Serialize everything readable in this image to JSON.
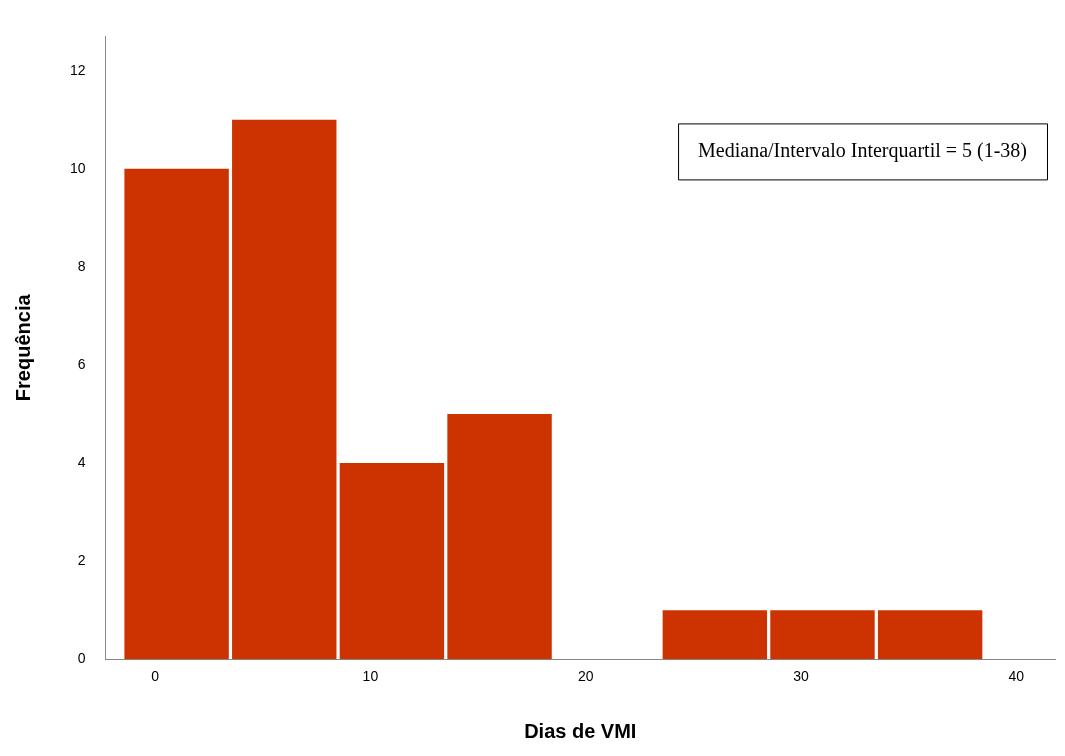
{
  "chart_data": {
    "type": "histogram",
    "xlabel": "Dias de VMI",
    "ylabel": "Frequência",
    "bins": [
      -1.5,
      3.5,
      8.5,
      13.5,
      18.5,
      23.5,
      28.5,
      33.5,
      38.5
    ],
    "values": [
      10,
      11,
      4,
      5,
      0,
      1,
      1,
      1
    ],
    "color": "#cc3300",
    "xlim": [
      -2.3,
      41.8
    ],
    "xticks": [
      0,
      10,
      20,
      30,
      40
    ],
    "ylim": [
      0,
      12.7
    ],
    "yticks": [
      0,
      2,
      4,
      6,
      8,
      10,
      12
    ],
    "grid": false,
    "legend": false,
    "annotations": [
      "Mediana/Intervalo Interquartil = 5 (1-38)"
    ]
  }
}
